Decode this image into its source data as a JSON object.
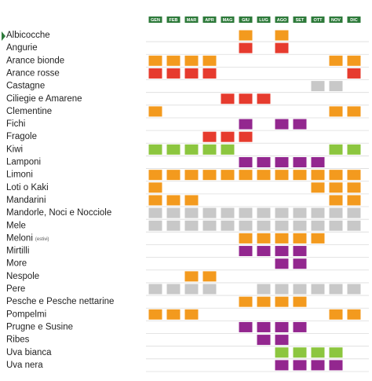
{
  "calendar": {
    "months": [
      "GEN",
      "FEB",
      "MAR",
      "APR",
      "MAG",
      "GIU",
      "LUG",
      "AGO",
      "SET",
      "OTT",
      "NOV",
      "DIC"
    ],
    "rows": [
      {
        "name": "Albicocche",
        "color": "#f39a1e",
        "active": [
          false,
          false,
          false,
          false,
          false,
          true,
          false,
          true,
          false,
          false,
          false,
          false
        ]
      },
      {
        "name": "Angurie",
        "color": "#e63b2e",
        "active": [
          false,
          false,
          false,
          false,
          false,
          true,
          false,
          true,
          false,
          false,
          false,
          false
        ]
      },
      {
        "name": "Arance bionde",
        "color": "#f39a1e",
        "active": [
          true,
          true,
          true,
          true,
          false,
          false,
          false,
          false,
          false,
          false,
          true,
          true
        ]
      },
      {
        "name": "Arance rosse",
        "color": "#e63b2e",
        "active": [
          true,
          true,
          true,
          true,
          false,
          false,
          false,
          false,
          false,
          false,
          false,
          true
        ]
      },
      {
        "name": "Castagne",
        "color": "#c8c8c8",
        "active": [
          false,
          false,
          false,
          false,
          false,
          false,
          false,
          false,
          false,
          true,
          true,
          false
        ]
      },
      {
        "name": "Ciliegie e Amarene",
        "color": "#e63b2e",
        "active": [
          false,
          false,
          false,
          false,
          true,
          true,
          true,
          false,
          false,
          false,
          false,
          false
        ]
      },
      {
        "name": "Clementine",
        "color": "#f39a1e",
        "active": [
          true,
          false,
          false,
          false,
          false,
          false,
          false,
          false,
          false,
          false,
          true,
          true
        ]
      },
      {
        "name": "Fichi",
        "color": "#93278f",
        "active": [
          false,
          false,
          false,
          false,
          false,
          true,
          false,
          true,
          true,
          false,
          false,
          false
        ]
      },
      {
        "name": "Fragole",
        "color": "#e63b2e",
        "active": [
          false,
          false,
          false,
          true,
          true,
          true,
          false,
          false,
          false,
          false,
          false,
          false
        ]
      },
      {
        "name": "Kiwi",
        "color": "#8cc63f",
        "active": [
          true,
          true,
          true,
          true,
          true,
          false,
          false,
          false,
          false,
          false,
          true,
          true
        ]
      },
      {
        "name": "Lamponi",
        "color": "#93278f",
        "active": [
          false,
          false,
          false,
          false,
          false,
          true,
          true,
          true,
          true,
          true,
          false,
          false
        ]
      },
      {
        "name": "Limoni",
        "color": "#f39a1e",
        "active": [
          true,
          true,
          true,
          true,
          true,
          true,
          true,
          true,
          true,
          true,
          true,
          true
        ]
      },
      {
        "name": "Loti o Kaki",
        "color": "#f39a1e",
        "active": [
          true,
          false,
          false,
          false,
          false,
          false,
          false,
          false,
          false,
          true,
          true,
          true
        ]
      },
      {
        "name": "Mandarini",
        "color": "#f39a1e",
        "active": [
          true,
          true,
          true,
          false,
          false,
          false,
          false,
          false,
          false,
          false,
          true,
          true
        ]
      },
      {
        "name": "Mandorle, Noci e Nocciole",
        "color": "#c8c8c8",
        "active": [
          true,
          true,
          true,
          true,
          true,
          true,
          true,
          true,
          true,
          true,
          true,
          true
        ]
      },
      {
        "name": "Mele",
        "color": "#c8c8c8",
        "active": [
          true,
          true,
          true,
          true,
          true,
          true,
          true,
          true,
          true,
          true,
          true,
          true
        ]
      },
      {
        "name": "Meloni",
        "note": "(estivi)",
        "color": "#f39a1e",
        "active": [
          false,
          false,
          false,
          false,
          false,
          true,
          true,
          true,
          true,
          true,
          false,
          false
        ]
      },
      {
        "name": "Mirtilli",
        "color": "#93278f",
        "active": [
          false,
          false,
          false,
          false,
          false,
          true,
          true,
          true,
          true,
          false,
          false,
          false
        ]
      },
      {
        "name": "More",
        "color": "#93278f",
        "active": [
          false,
          false,
          false,
          false,
          false,
          false,
          false,
          true,
          true,
          false,
          false,
          false
        ]
      },
      {
        "name": "Nespole",
        "color": "#f39a1e",
        "active": [
          false,
          false,
          true,
          true,
          false,
          false,
          false,
          false,
          false,
          false,
          false,
          false
        ]
      },
      {
        "name": "Pere",
        "color": "#c8c8c8",
        "active": [
          true,
          true,
          true,
          true,
          false,
          false,
          true,
          true,
          true,
          true,
          true,
          true
        ]
      },
      {
        "name": "Pesche e Pesche nettarine",
        "color": "#f39a1e",
        "active": [
          false,
          false,
          false,
          false,
          false,
          true,
          true,
          true,
          true,
          false,
          false,
          false
        ]
      },
      {
        "name": "Pompelmi",
        "color": "#f39a1e",
        "active": [
          true,
          true,
          true,
          false,
          false,
          false,
          false,
          false,
          false,
          false,
          true,
          true
        ]
      },
      {
        "name": "Prugne e Susine",
        "color": "#93278f",
        "active": [
          false,
          false,
          false,
          false,
          false,
          true,
          true,
          true,
          true,
          false,
          false,
          false
        ]
      },
      {
        "name": "Ribes",
        "color": "#93278f",
        "active": [
          false,
          false,
          false,
          false,
          false,
          false,
          true,
          true,
          false,
          false,
          false,
          false
        ]
      },
      {
        "name": "Uva bianca",
        "color": "#8cc63f",
        "active": [
          false,
          false,
          false,
          false,
          false,
          false,
          false,
          true,
          true,
          true,
          true,
          false
        ]
      },
      {
        "name": "Uva nera",
        "color": "#93278f",
        "active": [
          false,
          false,
          false,
          false,
          false,
          false,
          false,
          true,
          true,
          true,
          true,
          false
        ]
      }
    ]
  }
}
